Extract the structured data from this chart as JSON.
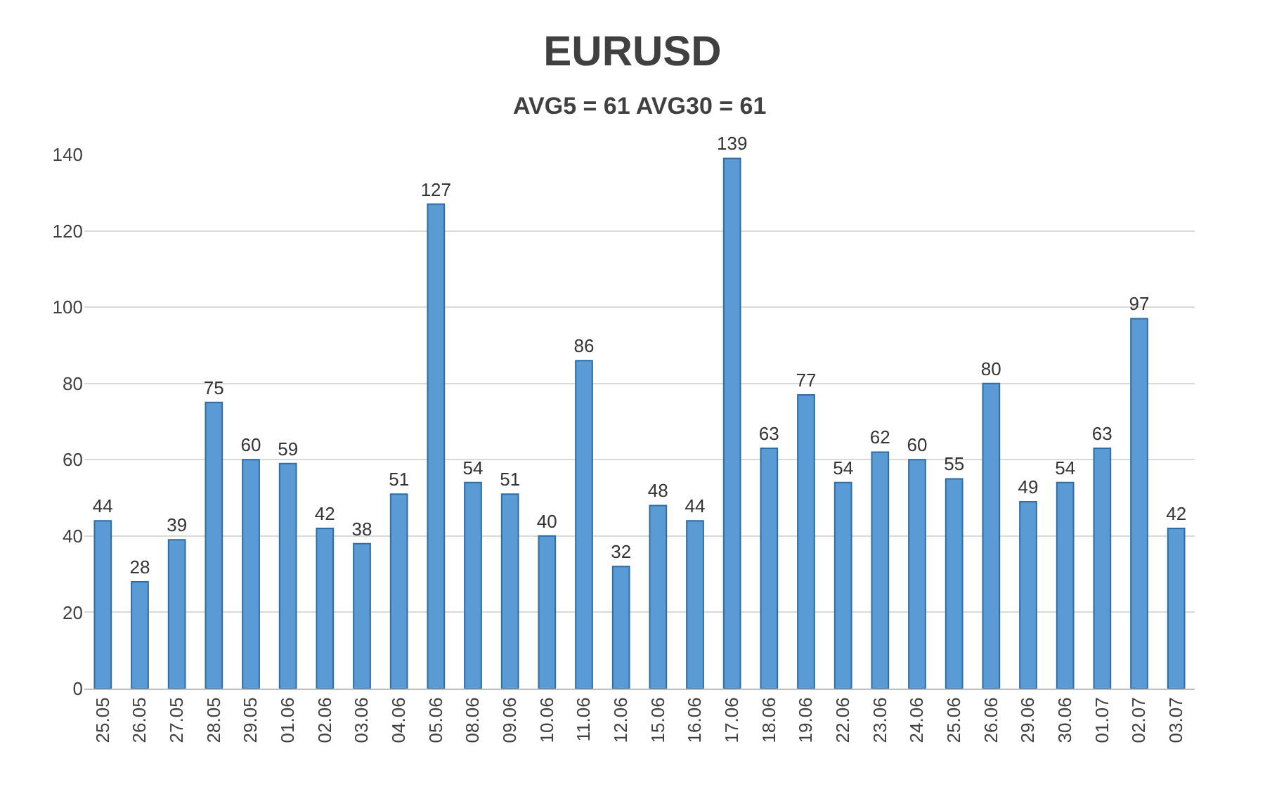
{
  "chart_data": {
    "type": "bar",
    "title": "EURUSD",
    "subtitle": "AVG5 = 61 AVG30 = 61",
    "categories": [
      "25.05",
      "26.05",
      "27.05",
      "28.05",
      "29.05",
      "01.06",
      "02.06",
      "03.06",
      "04.06",
      "05.06",
      "08.06",
      "09.06",
      "10.06",
      "11.06",
      "12.06",
      "15.06",
      "16.06",
      "17.06",
      "18.06",
      "19.06",
      "22.06",
      "23.06",
      "24.06",
      "25.06",
      "26.06",
      "29.06",
      "30.06",
      "01.07",
      "02.07",
      "03.07"
    ],
    "values": [
      44,
      28,
      39,
      75,
      60,
      59,
      42,
      38,
      51,
      127,
      54,
      51,
      40,
      86,
      32,
      48,
      44,
      139,
      63,
      77,
      54,
      62,
      60,
      55,
      80,
      49,
      54,
      63,
      97,
      42
    ],
    "color": "#5b9bd5",
    "ylim": [
      0,
      140
    ],
    "yticks": [
      0,
      20,
      40,
      60,
      80,
      100,
      120,
      140
    ],
    "grid": "y",
    "data_labels": true
  }
}
